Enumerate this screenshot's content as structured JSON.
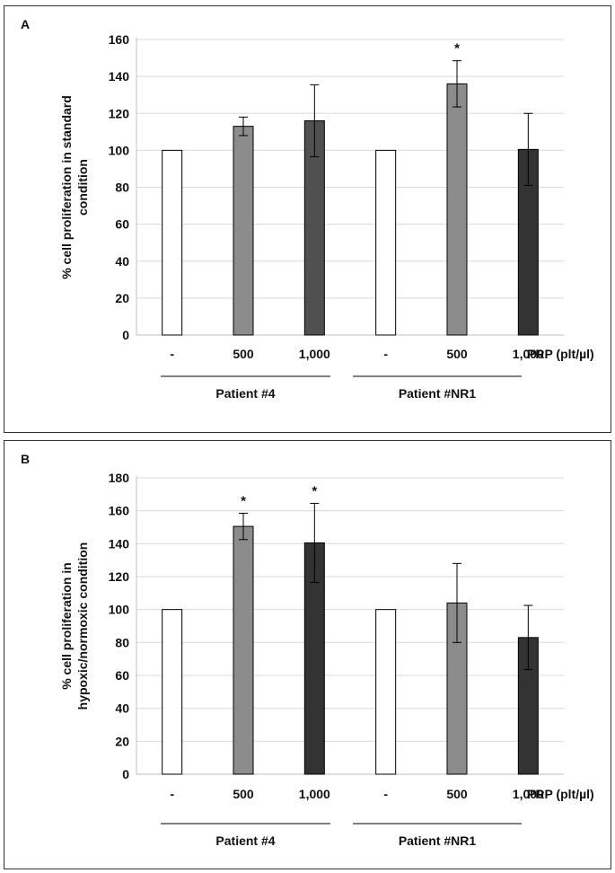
{
  "chart_data": [
    {
      "type": "bar",
      "panel_label": "A",
      "ylabel_lines": [
        "% cell proliferation in standard",
        "condition"
      ],
      "ylim": [
        0,
        160
      ],
      "yticks": [
        0,
        20,
        40,
        60,
        80,
        100,
        120,
        140,
        160
      ],
      "grid": true,
      "categories": [
        "-",
        "500",
        "1,000",
        "-",
        "500",
        "1,000"
      ],
      "values": [
        100,
        113,
        116,
        100,
        136,
        100.5
      ],
      "errors": [
        0,
        5,
        19.5,
        0,
        12.5,
        19.5
      ],
      "bar_colors": [
        "#ffffff",
        "#8c8c8c",
        "#505050",
        "#ffffff",
        "#8c8c8c",
        "#333333"
      ],
      "significance": [
        "",
        "",
        "",
        "",
        "*",
        ""
      ],
      "x_unit_label": "PRP (plt/µl)",
      "groups": [
        {
          "name": "Patient #4",
          "from": 0,
          "to": 2
        },
        {
          "name": "Patient #NR1",
          "from": 3,
          "to": 5
        }
      ]
    },
    {
      "type": "bar",
      "panel_label": "B",
      "ylabel_lines": [
        "% cell proliferation in",
        "hypoxic/normoxic condition"
      ],
      "ylim": [
        0,
        180
      ],
      "yticks": [
        0,
        20,
        40,
        60,
        80,
        100,
        120,
        140,
        160,
        180
      ],
      "grid": true,
      "categories": [
        "-",
        "500",
        "1,000",
        "-",
        "500",
        "1,000"
      ],
      "values": [
        100,
        150.5,
        140.5,
        100,
        104,
        83
      ],
      "errors": [
        0,
        8,
        24,
        0,
        24,
        19.5
      ],
      "bar_colors": [
        "#ffffff",
        "#8c8c8c",
        "#333333",
        "#ffffff",
        "#8c8c8c",
        "#333333"
      ],
      "significance": [
        "",
        "*",
        "*",
        "",
        "",
        ""
      ],
      "x_unit_label": "PRP (plt/µl)",
      "groups": [
        {
          "name": "Patient #4",
          "from": 0,
          "to": 2
        },
        {
          "name": "Patient #NR1",
          "from": 3,
          "to": 5
        }
      ]
    }
  ]
}
